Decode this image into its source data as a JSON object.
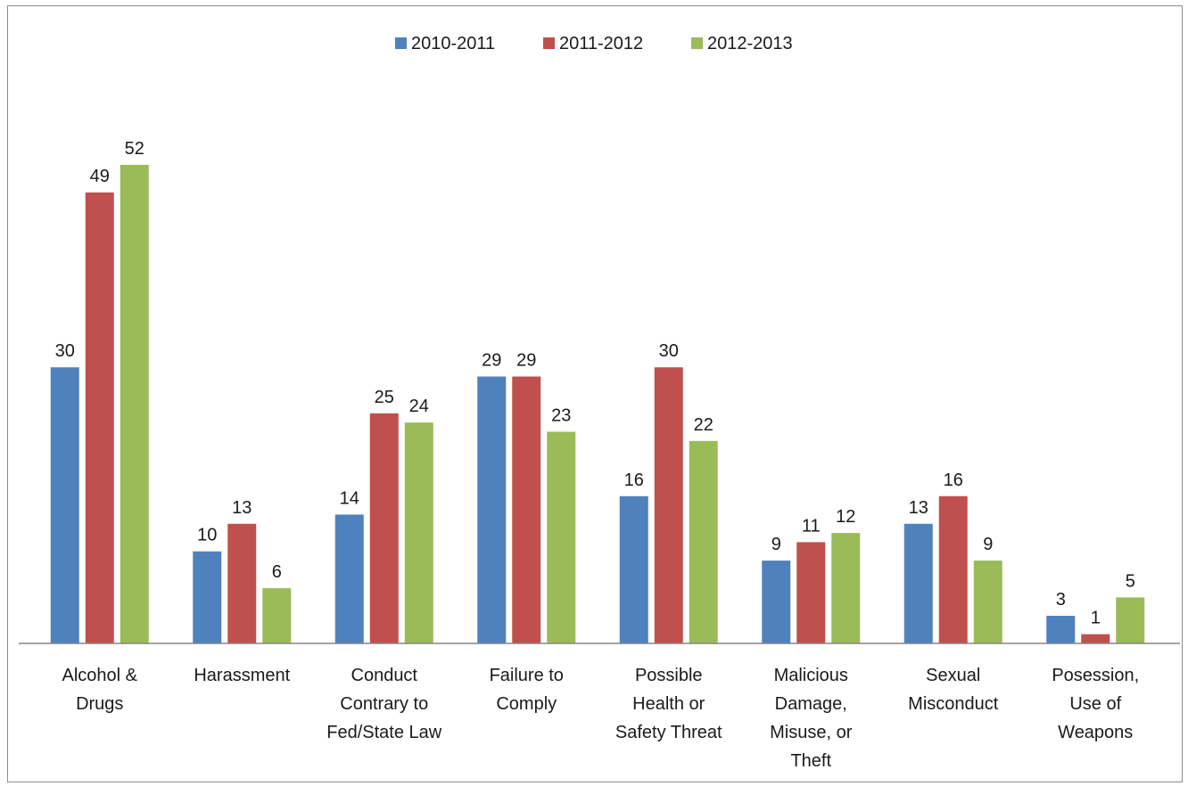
{
  "chart_data": {
    "type": "bar",
    "title": "",
    "xlabel": "",
    "ylabel": "",
    "ylim": [
      0,
      52
    ],
    "grid": false,
    "legend_position": "top",
    "categories": [
      [
        "Alcohol &",
        "Drugs"
      ],
      [
        "Harassment"
      ],
      [
        "Conduct",
        "Contrary to",
        "Fed/State Law"
      ],
      [
        "Failure to",
        "Comply"
      ],
      [
        "Possible",
        "Health or",
        "Safety Threat"
      ],
      [
        "Malicious",
        "Damage,",
        "Misuse, or",
        "Theft"
      ],
      [
        "Sexual",
        "Misconduct"
      ],
      [
        "Posession,",
        "Use of",
        "Weapons"
      ]
    ],
    "series": [
      {
        "name": "2010-2011",
        "color": "#4f81bd",
        "values": [
          30,
          10,
          14,
          29,
          16,
          9,
          13,
          3
        ]
      },
      {
        "name": "2011-2012",
        "color": "#c0504d",
        "values": [
          49,
          13,
          25,
          29,
          30,
          11,
          16,
          1
        ]
      },
      {
        "name": "2012-2013",
        "color": "#9bbb59",
        "values": [
          52,
          6,
          24,
          23,
          22,
          12,
          9,
          5
        ]
      }
    ],
    "data_labels": true
  }
}
